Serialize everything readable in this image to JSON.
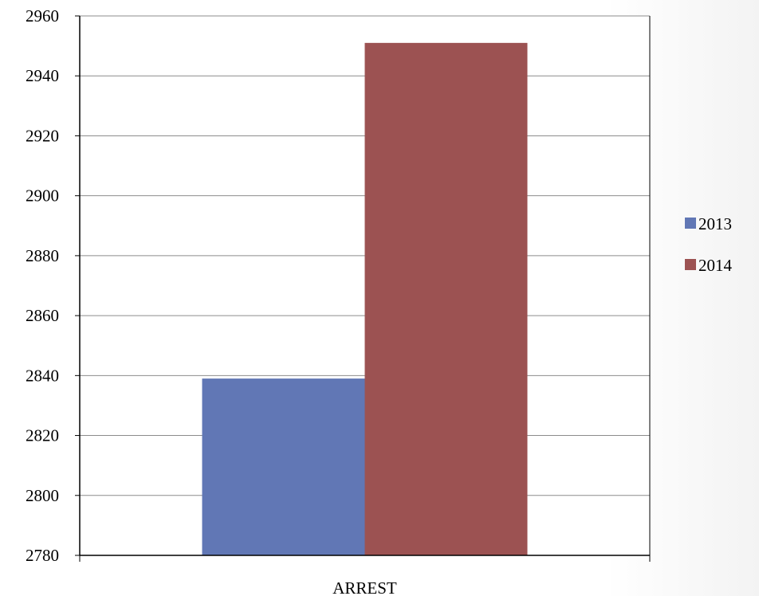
{
  "chart_data": {
    "type": "bar",
    "categories": [
      "ARREST"
    ],
    "series": [
      {
        "name": "2013",
        "values": [
          2839
        ],
        "color": "#6177b5"
      },
      {
        "name": "2014",
        "values": [
          2951
        ],
        "color": "#9c5252"
      }
    ],
    "ylim": [
      2780,
      2960
    ],
    "yticks": [
      2780,
      2800,
      2820,
      2840,
      2860,
      2880,
      2900,
      2920,
      2940,
      2960
    ],
    "grid": true,
    "legend_position": "right"
  }
}
